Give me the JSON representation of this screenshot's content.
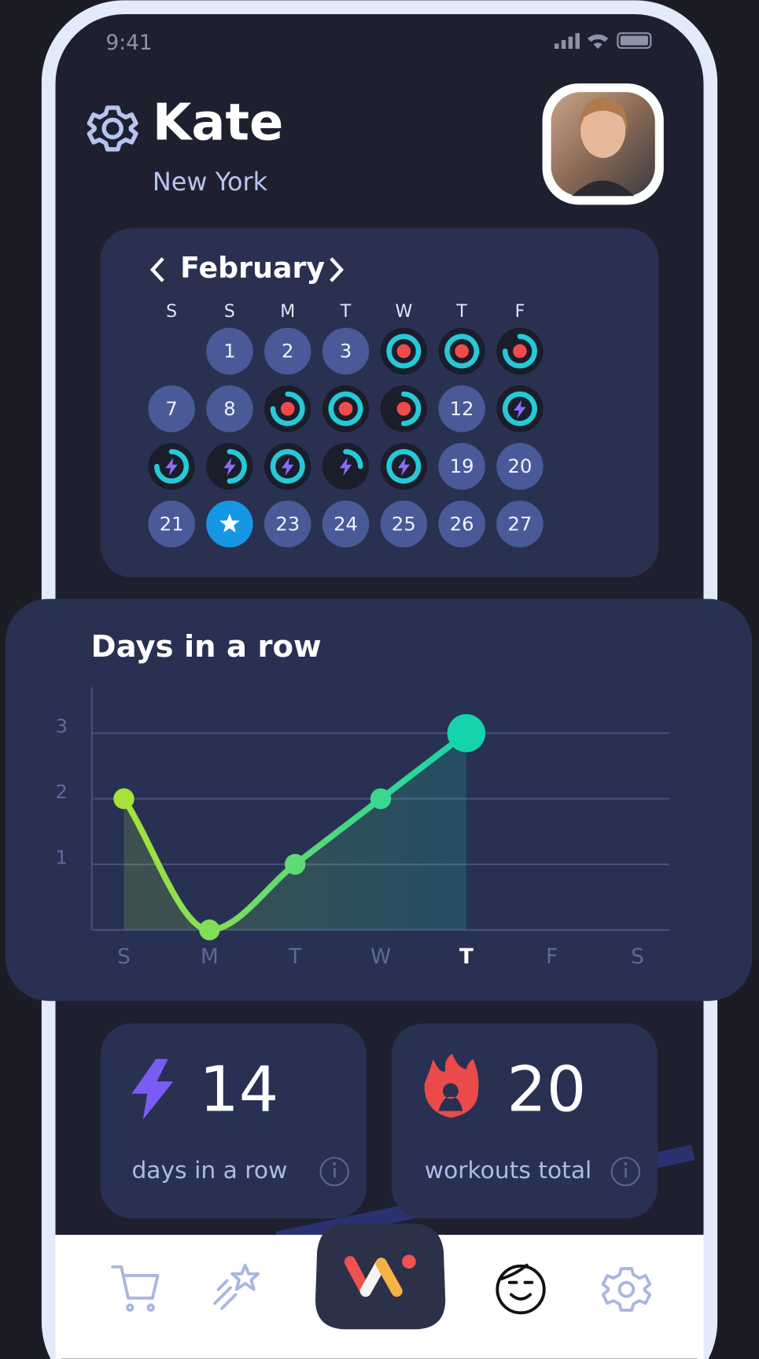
{
  "status_bar": {
    "time": "9:41"
  },
  "profile": {
    "name": "Kate",
    "city": "New York"
  },
  "calendar": {
    "month": "February",
    "weekdays": [
      "S",
      "S",
      "M",
      "T",
      "W",
      "T",
      "F"
    ],
    "days": [
      null,
      1,
      2,
      3,
      null,
      null,
      null,
      7,
      8,
      null,
      null,
      null,
      12,
      null,
      null,
      null,
      null,
      null,
      null,
      19,
      20,
      21,
      null,
      23,
      24,
      25,
      26,
      27
    ]
  },
  "chart_data": {
    "type": "line",
    "title": "Days in a row",
    "categories": [
      "S",
      "M",
      "T",
      "W",
      "T",
      "F",
      "S"
    ],
    "values": [
      2,
      0,
      1,
      2,
      3,
      null,
      null
    ],
    "ylim": [
      0,
      3.7
    ],
    "yticks": [
      1,
      2,
      3
    ],
    "grid": true
  },
  "stats": [
    {
      "value": 14,
      "label": "days in a row"
    },
    {
      "value": 20,
      "label": "workouts total"
    }
  ]
}
